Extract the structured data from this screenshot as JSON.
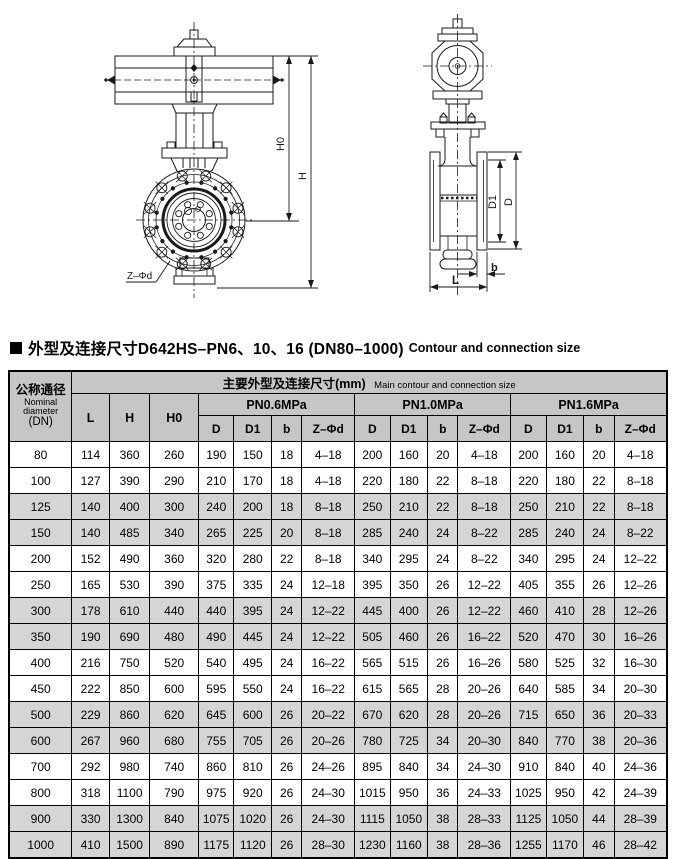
{
  "section": {
    "title_cn": "外型及连接尺寸D642HS–PN6、10、16 (DN80–1000)",
    "title_en": "Contour and connection size"
  },
  "drawing": {
    "labels": {
      "height_total": "H",
      "height_upper": "H0",
      "bolt_note": "Z–Φd",
      "outer_diameter": "D",
      "bolt_circle_diameter": "D1",
      "flange_thickness": "b",
      "body_length": "L"
    }
  },
  "colors": {
    "header_bg": "#c6c6c6",
    "row_shade": "#d5d5d5",
    "line": "#1a1a1a"
  },
  "table": {
    "corner": {
      "cn": "公称通径",
      "en": "Nominal diameter",
      "unit": "(DN)"
    },
    "main_header": {
      "cn": "主要外型及连接尺寸(mm)",
      "en": "Main contour and connection size"
    },
    "dim_cols": [
      "L",
      "H",
      "H0"
    ],
    "pressure_groups": [
      "PN0.6MPa",
      "PN1.0MPa",
      "PN1.6MPa"
    ],
    "leaf_cols": [
      "D",
      "D1",
      "b",
      "Z–Φd"
    ],
    "rows": [
      [
        "80",
        "114",
        "360",
        "260",
        "190",
        "150",
        "18",
        "4–18",
        "200",
        "160",
        "20",
        "4–18",
        "200",
        "160",
        "20",
        "4–18"
      ],
      [
        "100",
        "127",
        "390",
        "290",
        "210",
        "170",
        "18",
        "4–18",
        "220",
        "180",
        "22",
        "8–18",
        "220",
        "180",
        "22",
        "8–18"
      ],
      [
        "125",
        "140",
        "400",
        "300",
        "240",
        "200",
        "18",
        "8–18",
        "250",
        "210",
        "22",
        "8–18",
        "250",
        "210",
        "22",
        "8–18"
      ],
      [
        "150",
        "140",
        "485",
        "340",
        "265",
        "225",
        "20",
        "8–18",
        "285",
        "240",
        "24",
        "8–22",
        "285",
        "240",
        "24",
        "8–22"
      ],
      [
        "200",
        "152",
        "490",
        "360",
        "320",
        "280",
        "22",
        "8–18",
        "340",
        "295",
        "24",
        "8–22",
        "340",
        "295",
        "24",
        "12–22"
      ],
      [
        "250",
        "165",
        "530",
        "390",
        "375",
        "335",
        "24",
        "12–18",
        "395",
        "350",
        "26",
        "12–22",
        "405",
        "355",
        "26",
        "12–26"
      ],
      [
        "300",
        "178",
        "610",
        "440",
        "440",
        "395",
        "24",
        "12–22",
        "445",
        "400",
        "26",
        "12–22",
        "460",
        "410",
        "28",
        "12–26"
      ],
      [
        "350",
        "190",
        "690",
        "480",
        "490",
        "445",
        "24",
        "12–22",
        "505",
        "460",
        "26",
        "16–22",
        "520",
        "470",
        "30",
        "16–26"
      ],
      [
        "400",
        "216",
        "750",
        "520",
        "540",
        "495",
        "24",
        "16–22",
        "565",
        "515",
        "26",
        "16–26",
        "580",
        "525",
        "32",
        "16–30"
      ],
      [
        "450",
        "222",
        "850",
        "600",
        "595",
        "550",
        "24",
        "16–22",
        "615",
        "565",
        "28",
        "20–26",
        "640",
        "585",
        "34",
        "20–30"
      ],
      [
        "500",
        "229",
        "860",
        "620",
        "645",
        "600",
        "26",
        "20–22",
        "670",
        "620",
        "28",
        "20–26",
        "715",
        "650",
        "36",
        "20–33"
      ],
      [
        "600",
        "267",
        "960",
        "680",
        "755",
        "705",
        "26",
        "20–26",
        "780",
        "725",
        "34",
        "20–30",
        "840",
        "770",
        "38",
        "20–36"
      ],
      [
        "700",
        "292",
        "980",
        "740",
        "860",
        "810",
        "26",
        "24–26",
        "895",
        "840",
        "34",
        "24–30",
        "910",
        "840",
        "40",
        "24–36"
      ],
      [
        "800",
        "318",
        "1100",
        "790",
        "975",
        "920",
        "26",
        "24–30",
        "1015",
        "950",
        "36",
        "24–33",
        "1025",
        "950",
        "42",
        "24–39"
      ],
      [
        "900",
        "330",
        "1300",
        "840",
        "1075",
        "1020",
        "26",
        "24–30",
        "1115",
        "1050",
        "38",
        "28–33",
        "1125",
        "1050",
        "44",
        "28–39"
      ],
      [
        "1000",
        "410",
        "1500",
        "890",
        "1175",
        "1120",
        "26",
        "28–30",
        "1230",
        "1160",
        "38",
        "28–36",
        "1255",
        "1170",
        "46",
        "28–42"
      ]
    ],
    "row_shading": [
      false,
      false,
      true,
      true,
      false,
      false,
      true,
      true,
      false,
      false,
      true,
      true,
      false,
      false,
      true,
      true
    ]
  }
}
